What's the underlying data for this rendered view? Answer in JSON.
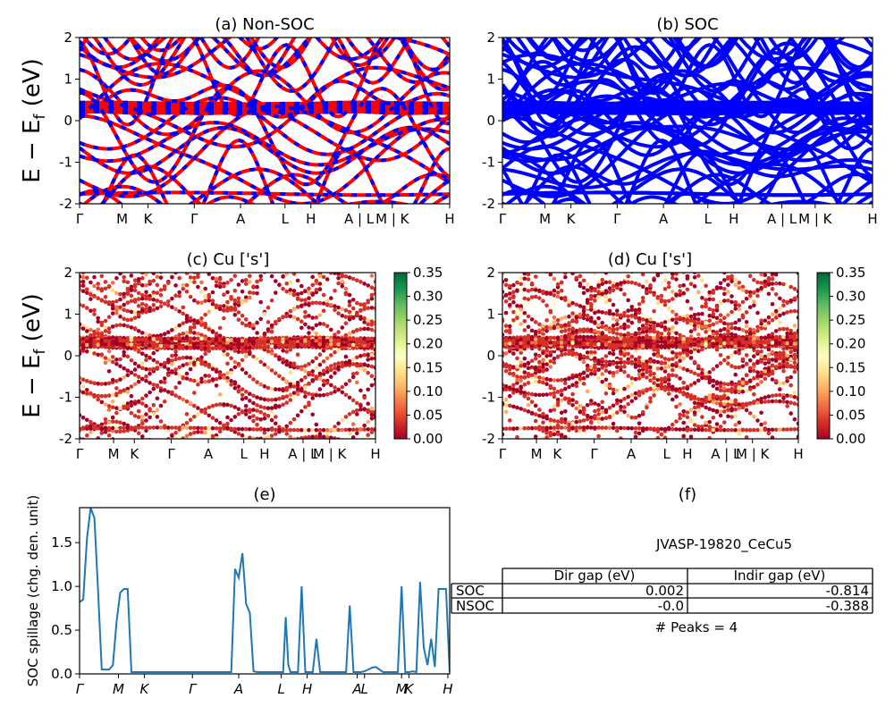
{
  "chart_data": [
    {
      "id": "a",
      "type": "line",
      "title": "(a) Non-SOC",
      "ylabel": "E − E_f (eV)",
      "ylim": [
        -2,
        2
      ],
      "yticks": [
        -2,
        -1,
        0,
        1,
        2
      ],
      "xticks": [
        "Γ",
        "M",
        "K",
        "Γ",
        "A",
        "L",
        "H",
        "A | L",
        "M | K",
        "H"
      ],
      "series_colors": [
        "#ff0000",
        "#0000ff"
      ],
      "bands_sample": [
        [
          -1.75,
          -1.75,
          -1.78,
          -1.8,
          -1.75,
          -1.75,
          -1.78,
          -1.75,
          -1.7,
          -1.72
        ],
        [
          0.2,
          0.3,
          0.35,
          0.35,
          0.35,
          0.32,
          0.3,
          0.3,
          0.3,
          0.3
        ]
      ]
    },
    {
      "id": "b",
      "type": "line",
      "title": "(b) SOC",
      "ylim": [
        -2,
        2
      ],
      "yticks": [
        -2,
        -1,
        0,
        1,
        2
      ],
      "xticks": [
        "Γ",
        "M",
        "K",
        "Γ",
        "A",
        "L",
        "H",
        "A | L",
        "M | K",
        "H"
      ],
      "series_colors": [
        "#0000ff"
      ]
    },
    {
      "id": "c",
      "type": "scatter",
      "title": "(c)  Cu ['s']",
      "ylabel": "E − E_f (eV)",
      "ylim": [
        -2,
        2
      ],
      "yticks": [
        -2,
        -1,
        0,
        1,
        2
      ],
      "xticks": [
        "Γ",
        "M",
        "K",
        "Γ",
        "A",
        "L",
        "H",
        "A | L",
        "M | K",
        "H"
      ],
      "colorbar": {
        "range": [
          0,
          0.35
        ],
        "ticks": [
          "0.00",
          "0.05",
          "0.10",
          "0.15",
          "0.20",
          "0.25",
          "0.30",
          "0.35"
        ],
        "cmap": "RdYlGn"
      }
    },
    {
      "id": "d",
      "type": "scatter",
      "title": "(d) Cu ['s']",
      "ylim": [
        -2,
        2
      ],
      "yticks": [
        -2,
        -1,
        0,
        1,
        2
      ],
      "xticks": [
        "Γ",
        "M",
        "K",
        "Γ",
        "A",
        "L",
        "H",
        "A | L",
        "M | K",
        "H"
      ],
      "colorbar": {
        "range": [
          0,
          0.35
        ],
        "ticks": [
          "0.00",
          "0.05",
          "0.10",
          "0.15",
          "0.20",
          "0.25",
          "0.30",
          "0.35"
        ],
        "cmap": "RdYlGn"
      }
    },
    {
      "id": "e",
      "type": "line",
      "title": "(e)",
      "ylabel": "SOC spillage (chg. den. unit)",
      "ylim": [
        0,
        1.9
      ],
      "yticks": [
        "0.0",
        "0.5",
        "1.0",
        "1.5"
      ],
      "xticks": [
        "Γ",
        "M",
        "K",
        "Γ",
        "A",
        "L",
        "H",
        "A",
        "L",
        "M",
        "K",
        "H"
      ],
      "xlim": [
        0,
        100
      ],
      "color": "#1f77b4",
      "x": [
        0,
        1,
        2,
        3,
        4,
        5,
        6,
        7,
        8,
        9,
        10,
        11,
        12,
        13,
        14,
        15,
        16,
        17,
        18,
        19,
        20,
        22,
        25,
        28,
        32,
        35,
        38,
        40,
        41,
        42,
        43,
        44,
        45,
        46,
        47,
        48,
        49,
        50,
        52,
        54,
        55,
        55.7,
        56.4,
        57,
        58,
        59,
        60,
        61,
        62,
        63,
        64,
        65,
        66,
        67,
        68,
        69,
        70,
        71,
        72,
        73,
        74,
        75,
        76,
        77,
        78,
        79,
        80,
        81,
        82,
        83,
        84,
        85,
        86,
        87,
        88,
        89,
        90,
        91,
        92,
        93,
        94,
        95,
        96,
        97,
        98,
        99,
        100
      ],
      "y": [
        0.82,
        0.85,
        1.55,
        1.9,
        1.78,
        0.95,
        0.05,
        0.05,
        0.05,
        0.1,
        0.6,
        0.93,
        0.97,
        0.97,
        0.02,
        0.02,
        0.02,
        0.02,
        0.02,
        0.02,
        0.02,
        0.02,
        0.02,
        0.02,
        0.02,
        0.02,
        0.02,
        0.02,
        0.02,
        1.2,
        1.1,
        1.38,
        0.8,
        0.7,
        0.03,
        0.02,
        0.02,
        0.02,
        0.02,
        0.02,
        0.02,
        0.65,
        0.1,
        0.02,
        0.02,
        0.02,
        1.0,
        0.02,
        0.02,
        0.02,
        0.4,
        0.02,
        0.02,
        0.02,
        0.02,
        0.02,
        0.02,
        0.02,
        0.02,
        0.78,
        0.02,
        0.02,
        0.02,
        0.03,
        0.05,
        0.07,
        0.08,
        0.05,
        0.02,
        0.02,
        0.02,
        0.02,
        0.02,
        1.0,
        0.02,
        0.02,
        0.03,
        0.02,
        1.05,
        0.3,
        0.1,
        0.4,
        0.08,
        0.97,
        0.97,
        0.97,
        0.02
      ]
    }
  ],
  "table": {
    "title": "(f)",
    "material": "JVASP-19820_CeCu5",
    "columns": [
      "Dir gap (eV)",
      "Indir gap (eV)"
    ],
    "rows": [
      {
        "label": "SOC",
        "dir": "0.002",
        "indir": "-0.814"
      },
      {
        "label": "NSOC",
        "dir": "-0.0",
        "indir": "-0.388"
      }
    ],
    "peaks": "# Peaks = 4"
  }
}
